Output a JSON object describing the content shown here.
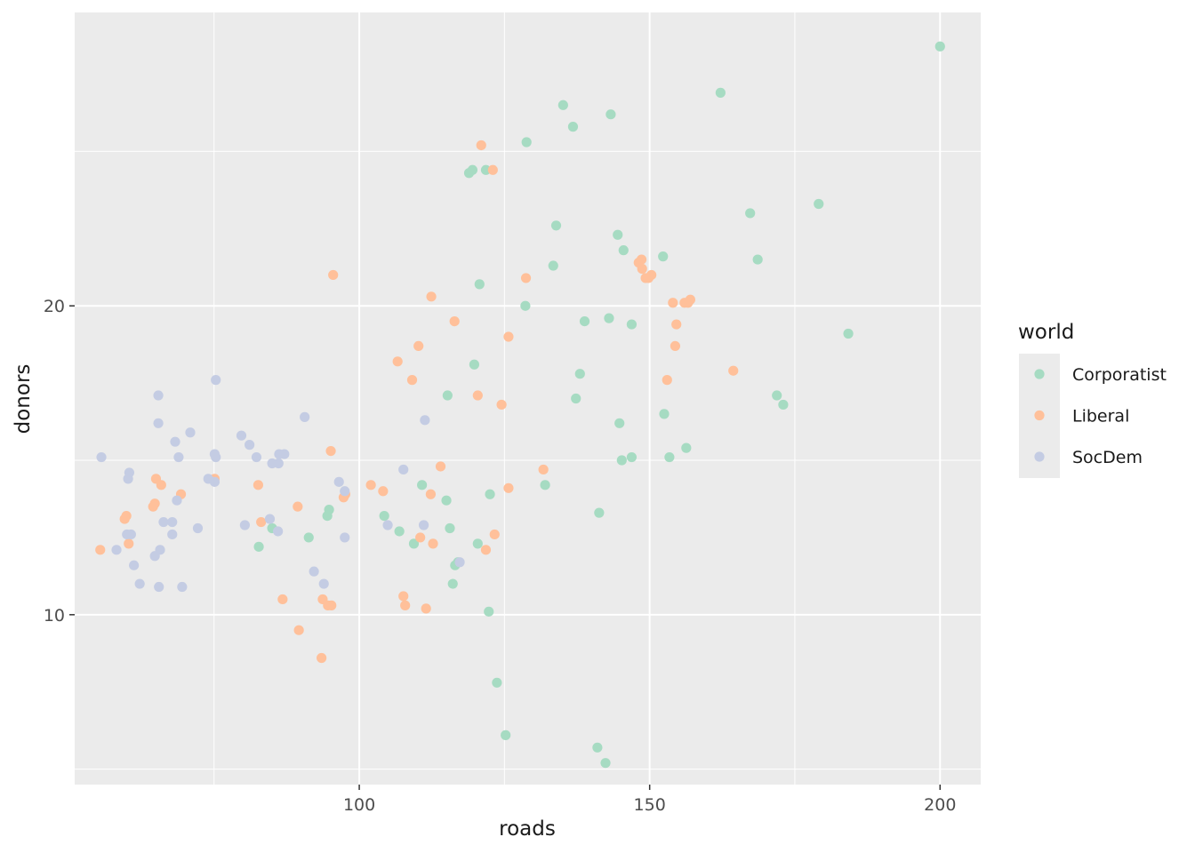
{
  "chart_data": {
    "type": "scatter",
    "xlabel": "roads",
    "ylabel": "donors",
    "xlim": [
      51,
      207
    ],
    "ylim": [
      4.5,
      29.5
    ],
    "xticks": [
      100,
      150,
      200
    ],
    "xticks_minor": [
      75,
      125,
      175
    ],
    "yticks": [
      10,
      20
    ],
    "yticks_minor": [
      5,
      15,
      25
    ],
    "grid": true,
    "legend": {
      "title": "world",
      "position": "right"
    },
    "series": [
      {
        "name": "Corporatist",
        "color": "#A6DBC2",
        "points": [
          [
            200,
            28.4
          ],
          [
            162.2,
            26.9
          ],
          [
            135.1,
            26.5
          ],
          [
            143.3,
            26.2
          ],
          [
            136.8,
            25.8
          ],
          [
            128.8,
            25.3
          ],
          [
            121.8,
            24.4
          ],
          [
            119.5,
            24.4
          ],
          [
            118.9,
            24.3
          ],
          [
            179.1,
            23.3
          ],
          [
            167.3,
            23.0
          ],
          [
            133.9,
            22.6
          ],
          [
            144.5,
            22.3
          ],
          [
            145.5,
            21.8
          ],
          [
            152.3,
            21.6
          ],
          [
            168.6,
            21.5
          ],
          [
            133.4,
            21.3
          ],
          [
            120.7,
            20.7
          ],
          [
            128.6,
            20.0
          ],
          [
            143.0,
            19.6
          ],
          [
            138.8,
            19.5
          ],
          [
            146.9,
            19.4
          ],
          [
            184.2,
            19.1
          ],
          [
            119.8,
            18.1
          ],
          [
            138.0,
            17.8
          ],
          [
            115.2,
            17.1
          ],
          [
            137.3,
            17.0
          ],
          [
            171.9,
            17.1
          ],
          [
            173.0,
            16.8
          ],
          [
            152.5,
            16.5
          ],
          [
            144.8,
            16.2
          ],
          [
            156.3,
            15.4
          ],
          [
            146.9,
            15.1
          ],
          [
            145.2,
            15.0
          ],
          [
            153.4,
            15.1
          ],
          [
            132.0,
            14.2
          ],
          [
            110.8,
            14.2
          ],
          [
            122.5,
            13.9
          ],
          [
            115.0,
            13.7
          ],
          [
            94.8,
            13.4
          ],
          [
            94.5,
            13.2
          ],
          [
            104.3,
            13.2
          ],
          [
            141.3,
            13.3
          ],
          [
            106.9,
            12.7
          ],
          [
            115.6,
            12.8
          ],
          [
            85.0,
            12.8
          ],
          [
            91.3,
            12.5
          ],
          [
            82.7,
            12.2
          ],
          [
            109.4,
            12.3
          ],
          [
            120.4,
            12.3
          ],
          [
            117.0,
            11.7
          ],
          [
            116.5,
            11.6
          ],
          [
            116.1,
            11.0
          ],
          [
            122.3,
            10.1
          ],
          [
            123.7,
            7.8
          ],
          [
            125.2,
            6.1
          ],
          [
            141.0,
            5.7
          ],
          [
            142.4,
            5.2
          ]
        ]
      },
      {
        "name": "Liberal",
        "color": "#FFC09A",
        "points": [
          [
            121.0,
            25.2
          ],
          [
            123.0,
            24.4
          ],
          [
            95.5,
            21.0
          ],
          [
            128.7,
            20.9
          ],
          [
            148.6,
            21.5
          ],
          [
            148.1,
            21.4
          ],
          [
            148.7,
            21.2
          ],
          [
            150.3,
            21.0
          ],
          [
            149.8,
            20.9
          ],
          [
            149.3,
            20.9
          ],
          [
            112.4,
            20.3
          ],
          [
            154.0,
            20.1
          ],
          [
            156.0,
            20.1
          ],
          [
            156.6,
            20.1
          ],
          [
            157.0,
            20.2
          ],
          [
            116.4,
            19.5
          ],
          [
            154.6,
            19.4
          ],
          [
            125.7,
            19.0
          ],
          [
            110.2,
            18.7
          ],
          [
            154.4,
            18.7
          ],
          [
            106.6,
            18.2
          ],
          [
            164.4,
            17.9
          ],
          [
            109.1,
            17.6
          ],
          [
            153.0,
            17.6
          ],
          [
            120.4,
            17.1
          ],
          [
            124.5,
            16.8
          ],
          [
            95.1,
            15.3
          ],
          [
            114.0,
            14.8
          ],
          [
            131.7,
            14.7
          ],
          [
            65.0,
            14.4
          ],
          [
            75.1,
            14.4
          ],
          [
            65.9,
            14.2
          ],
          [
            82.6,
            14.2
          ],
          [
            102.0,
            14.2
          ],
          [
            125.7,
            14.1
          ],
          [
            104.1,
            14.0
          ],
          [
            112.3,
            13.9
          ],
          [
            69.3,
            13.9
          ],
          [
            97.6,
            13.9
          ],
          [
            97.3,
            13.8
          ],
          [
            64.8,
            13.6
          ],
          [
            64.5,
            13.5
          ],
          [
            89.4,
            13.5
          ],
          [
            59.9,
            13.2
          ],
          [
            59.6,
            13.1
          ],
          [
            83.1,
            13.0
          ],
          [
            110.5,
            12.5
          ],
          [
            123.3,
            12.6
          ],
          [
            112.7,
            12.3
          ],
          [
            60.3,
            12.3
          ],
          [
            55.4,
            12.1
          ],
          [
            121.8,
            12.1
          ],
          [
            86.8,
            10.5
          ],
          [
            93.7,
            10.5
          ],
          [
            94.6,
            10.3
          ],
          [
            95.2,
            10.3
          ],
          [
            107.6,
            10.6
          ],
          [
            107.9,
            10.3
          ],
          [
            111.5,
            10.2
          ],
          [
            89.6,
            9.5
          ],
          [
            93.5,
            8.6
          ]
        ]
      },
      {
        "name": "SocDem",
        "color": "#C4CCE3",
        "points": [
          [
            75.3,
            17.6
          ],
          [
            65.4,
            17.1
          ],
          [
            65.4,
            16.2
          ],
          [
            90.6,
            16.4
          ],
          [
            111.3,
            16.3
          ],
          [
            70.9,
            15.9
          ],
          [
            79.7,
            15.8
          ],
          [
            68.3,
            15.6
          ],
          [
            81.1,
            15.5
          ],
          [
            75.1,
            15.2
          ],
          [
            75.3,
            15.1
          ],
          [
            68.9,
            15.1
          ],
          [
            55.6,
            15.1
          ],
          [
            82.3,
            15.1
          ],
          [
            86.2,
            15.2
          ],
          [
            87.1,
            15.2
          ],
          [
            85.0,
            14.9
          ],
          [
            86.1,
            14.9
          ],
          [
            107.6,
            14.7
          ],
          [
            60.4,
            14.6
          ],
          [
            60.2,
            14.4
          ],
          [
            74.0,
            14.4
          ],
          [
            75.1,
            14.3
          ],
          [
            96.5,
            14.3
          ],
          [
            97.5,
            14.0
          ],
          [
            68.6,
            13.7
          ],
          [
            66.3,
            13.0
          ],
          [
            67.8,
            13.0
          ],
          [
            84.6,
            13.1
          ],
          [
            80.3,
            12.9
          ],
          [
            72.2,
            12.8
          ],
          [
            104.9,
            12.9
          ],
          [
            111.1,
            12.9
          ],
          [
            86.0,
            12.7
          ],
          [
            60.0,
            12.6
          ],
          [
            60.7,
            12.6
          ],
          [
            67.8,
            12.6
          ],
          [
            97.5,
            12.5
          ],
          [
            58.2,
            12.1
          ],
          [
            65.7,
            12.1
          ],
          [
            64.8,
            11.9
          ],
          [
            61.2,
            11.6
          ],
          [
            117.3,
            11.7
          ],
          [
            92.2,
            11.4
          ],
          [
            62.2,
            11.0
          ],
          [
            93.9,
            11.0
          ],
          [
            65.5,
            10.9
          ],
          [
            69.5,
            10.9
          ]
        ]
      }
    ]
  }
}
